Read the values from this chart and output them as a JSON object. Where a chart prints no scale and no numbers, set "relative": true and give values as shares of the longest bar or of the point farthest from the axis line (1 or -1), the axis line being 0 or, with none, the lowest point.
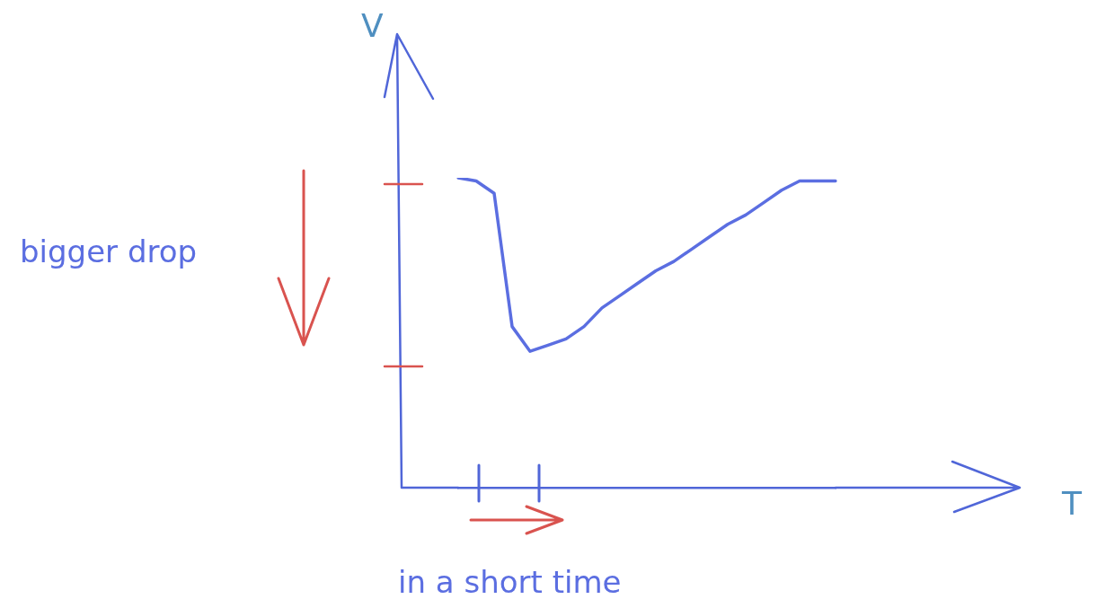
{
  "chart_data": {
    "type": "line",
    "relative": true,
    "ylabel": "V",
    "categories": [
      null,
      null,
      null,
      null,
      null,
      null,
      null,
      null,
      null,
      null,
      null,
      null,
      null,
      null,
      null,
      null,
      null,
      null,
      null,
      null,
      null,
      null
    ],
    "series": [
      {
        "color": "#5b6ee1",
        "values": [
          1.0,
          0.99,
          0.95,
          0.52,
          0.44,
          0.46,
          0.48,
          0.52,
          0.58,
          0.62,
          0.66,
          0.7,
          0.73,
          0.77,
          0.81,
          0.85,
          0.88,
          0.92,
          0.96,
          0.99,
          0.99,
          0.99
        ]
      }
    ],
    "annotations": [
      "bigger drop",
      "in a short time",
      "T"
    ],
    "legend": false,
    "marker": "none",
    "line_style": "solid"
  }
}
